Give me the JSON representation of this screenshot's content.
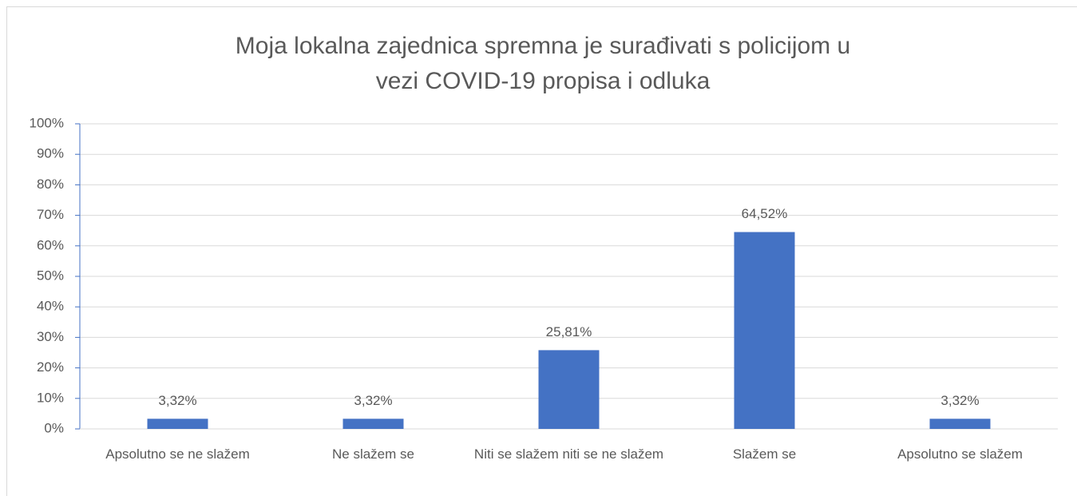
{
  "chart_data": {
    "type": "bar",
    "title": "Moja lokalna zajednica spremna je surađivati s policijom u vezi COVID-19 propisa i odluka",
    "categories": [
      "Apsolutno se ne slažem",
      "Ne slažem se",
      "Niti se slažem niti se ne slažem",
      "Slažem se",
      "Apsolutno se slažem"
    ],
    "values": [
      3.32,
      3.32,
      25.81,
      64.52,
      3.32
    ],
    "value_labels": [
      "3,32%",
      "3,32%",
      "25,81%",
      "64,52%",
      "3,32%"
    ],
    "color": "#4472c4",
    "ylim": [
      0,
      100
    ],
    "yticks": [
      {
        "value": 0,
        "label": "0%"
      },
      {
        "value": 10,
        "label": "10%"
      },
      {
        "value": 20,
        "label": "20%"
      },
      {
        "value": 30,
        "label": "30%"
      },
      {
        "value": 40,
        "label": "40%"
      },
      {
        "value": 50,
        "label": "50%"
      },
      {
        "value": 60,
        "label": "60%"
      },
      {
        "value": 70,
        "label": "70%"
      },
      {
        "value": 80,
        "label": "80%"
      },
      {
        "value": 90,
        "label": "90%"
      },
      {
        "value": 100,
        "label": "100%"
      }
    ],
    "grid": true
  }
}
